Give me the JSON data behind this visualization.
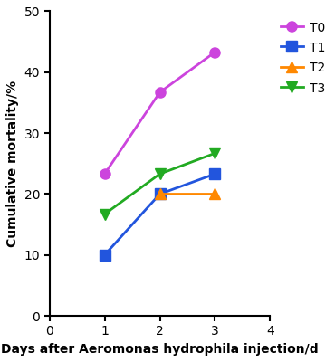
{
  "series": [
    {
      "label": "T0",
      "x": [
        1,
        2,
        3
      ],
      "y": [
        23.3,
        36.7,
        43.3
      ],
      "color": "#CC44DD",
      "marker": "o"
    },
    {
      "label": "T1",
      "x": [
        1,
        2,
        3
      ],
      "y": [
        10.0,
        20.0,
        23.3
      ],
      "color": "#2255DD",
      "marker": "s"
    },
    {
      "label": "T2",
      "x": [
        2,
        3
      ],
      "y": [
        20.0,
        20.0
      ],
      "color": "#FF8800",
      "marker": "^"
    },
    {
      "label": "T3",
      "x": [
        1,
        2,
        3
      ],
      "y": [
        16.7,
        23.3,
        26.7
      ],
      "color": "#22AA22",
      "marker": "v"
    }
  ],
  "xlim": [
    0,
    4
  ],
  "ylim": [
    0,
    50
  ],
  "xticks": [
    0,
    1,
    2,
    3,
    4
  ],
  "yticks": [
    0,
    10,
    20,
    30,
    40,
    50
  ],
  "xlabel": "Days after Aeromonas hydrophila injection/d",
  "ylabel": "Cumulative mortality/%",
  "background_color": "#ffffff",
  "linewidth": 2.0,
  "markersize": 8,
  "tick_fontsize": 10,
  "label_fontsize": 10,
  "legend_fontsize": 10
}
